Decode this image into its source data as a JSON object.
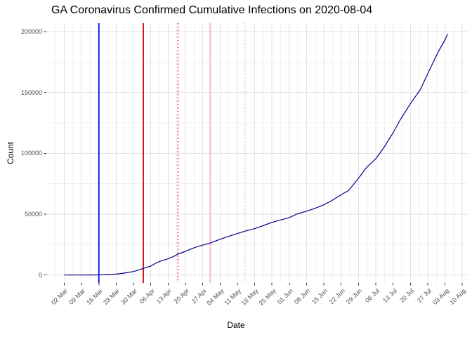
{
  "title": "GA Coronavirus Confirmed Cumulative Infections on 2020-08-04",
  "chart_data": {
    "type": "line",
    "title": "GA Coronavirus Confirmed Cumulative Infections on 2020-08-04",
    "xlabel": "Date",
    "ylabel": "Count",
    "x_tick_labels": [
      "02 Mar",
      "09 Mar",
      "16 Mar",
      "23 Mar",
      "30 Mar",
      "06 Apr",
      "13 Apr",
      "20 Apr",
      "27 Apr",
      "04 May",
      "11 May",
      "18 May",
      "25 May",
      "01 Jun",
      "08 Jun",
      "15 Jun",
      "22 Jun",
      "29 Jun",
      "06 Jul",
      "13 Jul",
      "20 Jul",
      "27 Jul",
      "03 Aug",
      "10 Aug"
    ],
    "x_tick_start_date": "2020-03-02",
    "x_tick_interval_days": 7,
    "y_ticks": [
      0,
      50000,
      100000,
      150000,
      200000
    ],
    "y_tick_labels": [
      "0",
      "50000",
      "100000",
      "150000",
      "200000"
    ],
    "ylim": [
      0,
      207000
    ],
    "grid": "major+minor",
    "legend": "none",
    "colors": {
      "series_line": "#00008B",
      "grid_major": "#e2e2e2",
      "grid_minor": "#f0f0f0",
      "axis_text": "#4d4d4d",
      "tick_mark": "#333333",
      "background": "#ffffff"
    },
    "vlines": [
      {
        "date": "2020-03-16",
        "color": "#0000EE",
        "style": "solid"
      },
      {
        "date": "2020-04-03",
        "color": "#DD0000",
        "style": "solid"
      },
      {
        "date": "2020-04-17",
        "color": "#DD0000",
        "style": "dotted"
      },
      {
        "date": "2020-04-30",
        "color": "#FFB6C1",
        "style": "solid"
      },
      {
        "date": "2020-05-14",
        "color": "#FFB6C1",
        "style": "dotted"
      }
    ],
    "series": [
      {
        "name": "cumulative_confirmed_infections",
        "points": [
          [
            "2020-03-02",
            2
          ],
          [
            "2020-03-05",
            9
          ],
          [
            "2020-03-09",
            17
          ],
          [
            "2020-03-12",
            42
          ],
          [
            "2020-03-14",
            66
          ],
          [
            "2020-03-16",
            121
          ],
          [
            "2020-03-18",
            199
          ],
          [
            "2020-03-20",
            420
          ],
          [
            "2020-03-23",
            772
          ],
          [
            "2020-03-26",
            1525
          ],
          [
            "2020-03-28",
            2198
          ],
          [
            "2020-03-30",
            2809
          ],
          [
            "2020-04-01",
            4117
          ],
          [
            "2020-04-03",
            5444
          ],
          [
            "2020-04-06",
            7314
          ],
          [
            "2020-04-08",
            9713
          ],
          [
            "2020-04-10",
            11483
          ],
          [
            "2020-04-13",
            13315
          ],
          [
            "2020-04-15",
            14987
          ],
          [
            "2020-04-17",
            17194
          ],
          [
            "2020-04-20",
            19407
          ],
          [
            "2020-04-22",
            21102
          ],
          [
            "2020-04-24",
            22695
          ],
          [
            "2020-04-27",
            24551
          ],
          [
            "2020-04-30",
            26264
          ],
          [
            "2020-05-04",
            29368
          ],
          [
            "2020-05-07",
            31439
          ],
          [
            "2020-05-11",
            34002
          ],
          [
            "2020-05-14",
            35977
          ],
          [
            "2020-05-18",
            38081
          ],
          [
            "2020-05-21",
            40228
          ],
          [
            "2020-05-25",
            43208
          ],
          [
            "2020-05-28",
            44898
          ],
          [
            "2020-06-01",
            47063
          ],
          [
            "2020-06-04",
            50011
          ],
          [
            "2020-06-08",
            52497
          ],
          [
            "2020-06-11",
            54464
          ],
          [
            "2020-06-15",
            57681
          ],
          [
            "2020-06-18",
            60912
          ],
          [
            "2020-06-22",
            65928
          ],
          [
            "2020-06-25",
            69381
          ],
          [
            "2020-06-29",
            79417
          ],
          [
            "2020-07-02",
            87709
          ],
          [
            "2020-07-06",
            95516
          ],
          [
            "2020-07-09",
            103890
          ],
          [
            "2020-07-13",
            116926
          ],
          [
            "2020-07-16",
            127834
          ],
          [
            "2020-07-20",
            140716
          ],
          [
            "2020-07-24",
            152302
          ],
          [
            "2020-07-27",
            165188
          ],
          [
            "2020-07-31",
            182286
          ],
          [
            "2020-08-03",
            193177
          ],
          [
            "2020-08-04",
            197948
          ]
        ]
      }
    ]
  }
}
